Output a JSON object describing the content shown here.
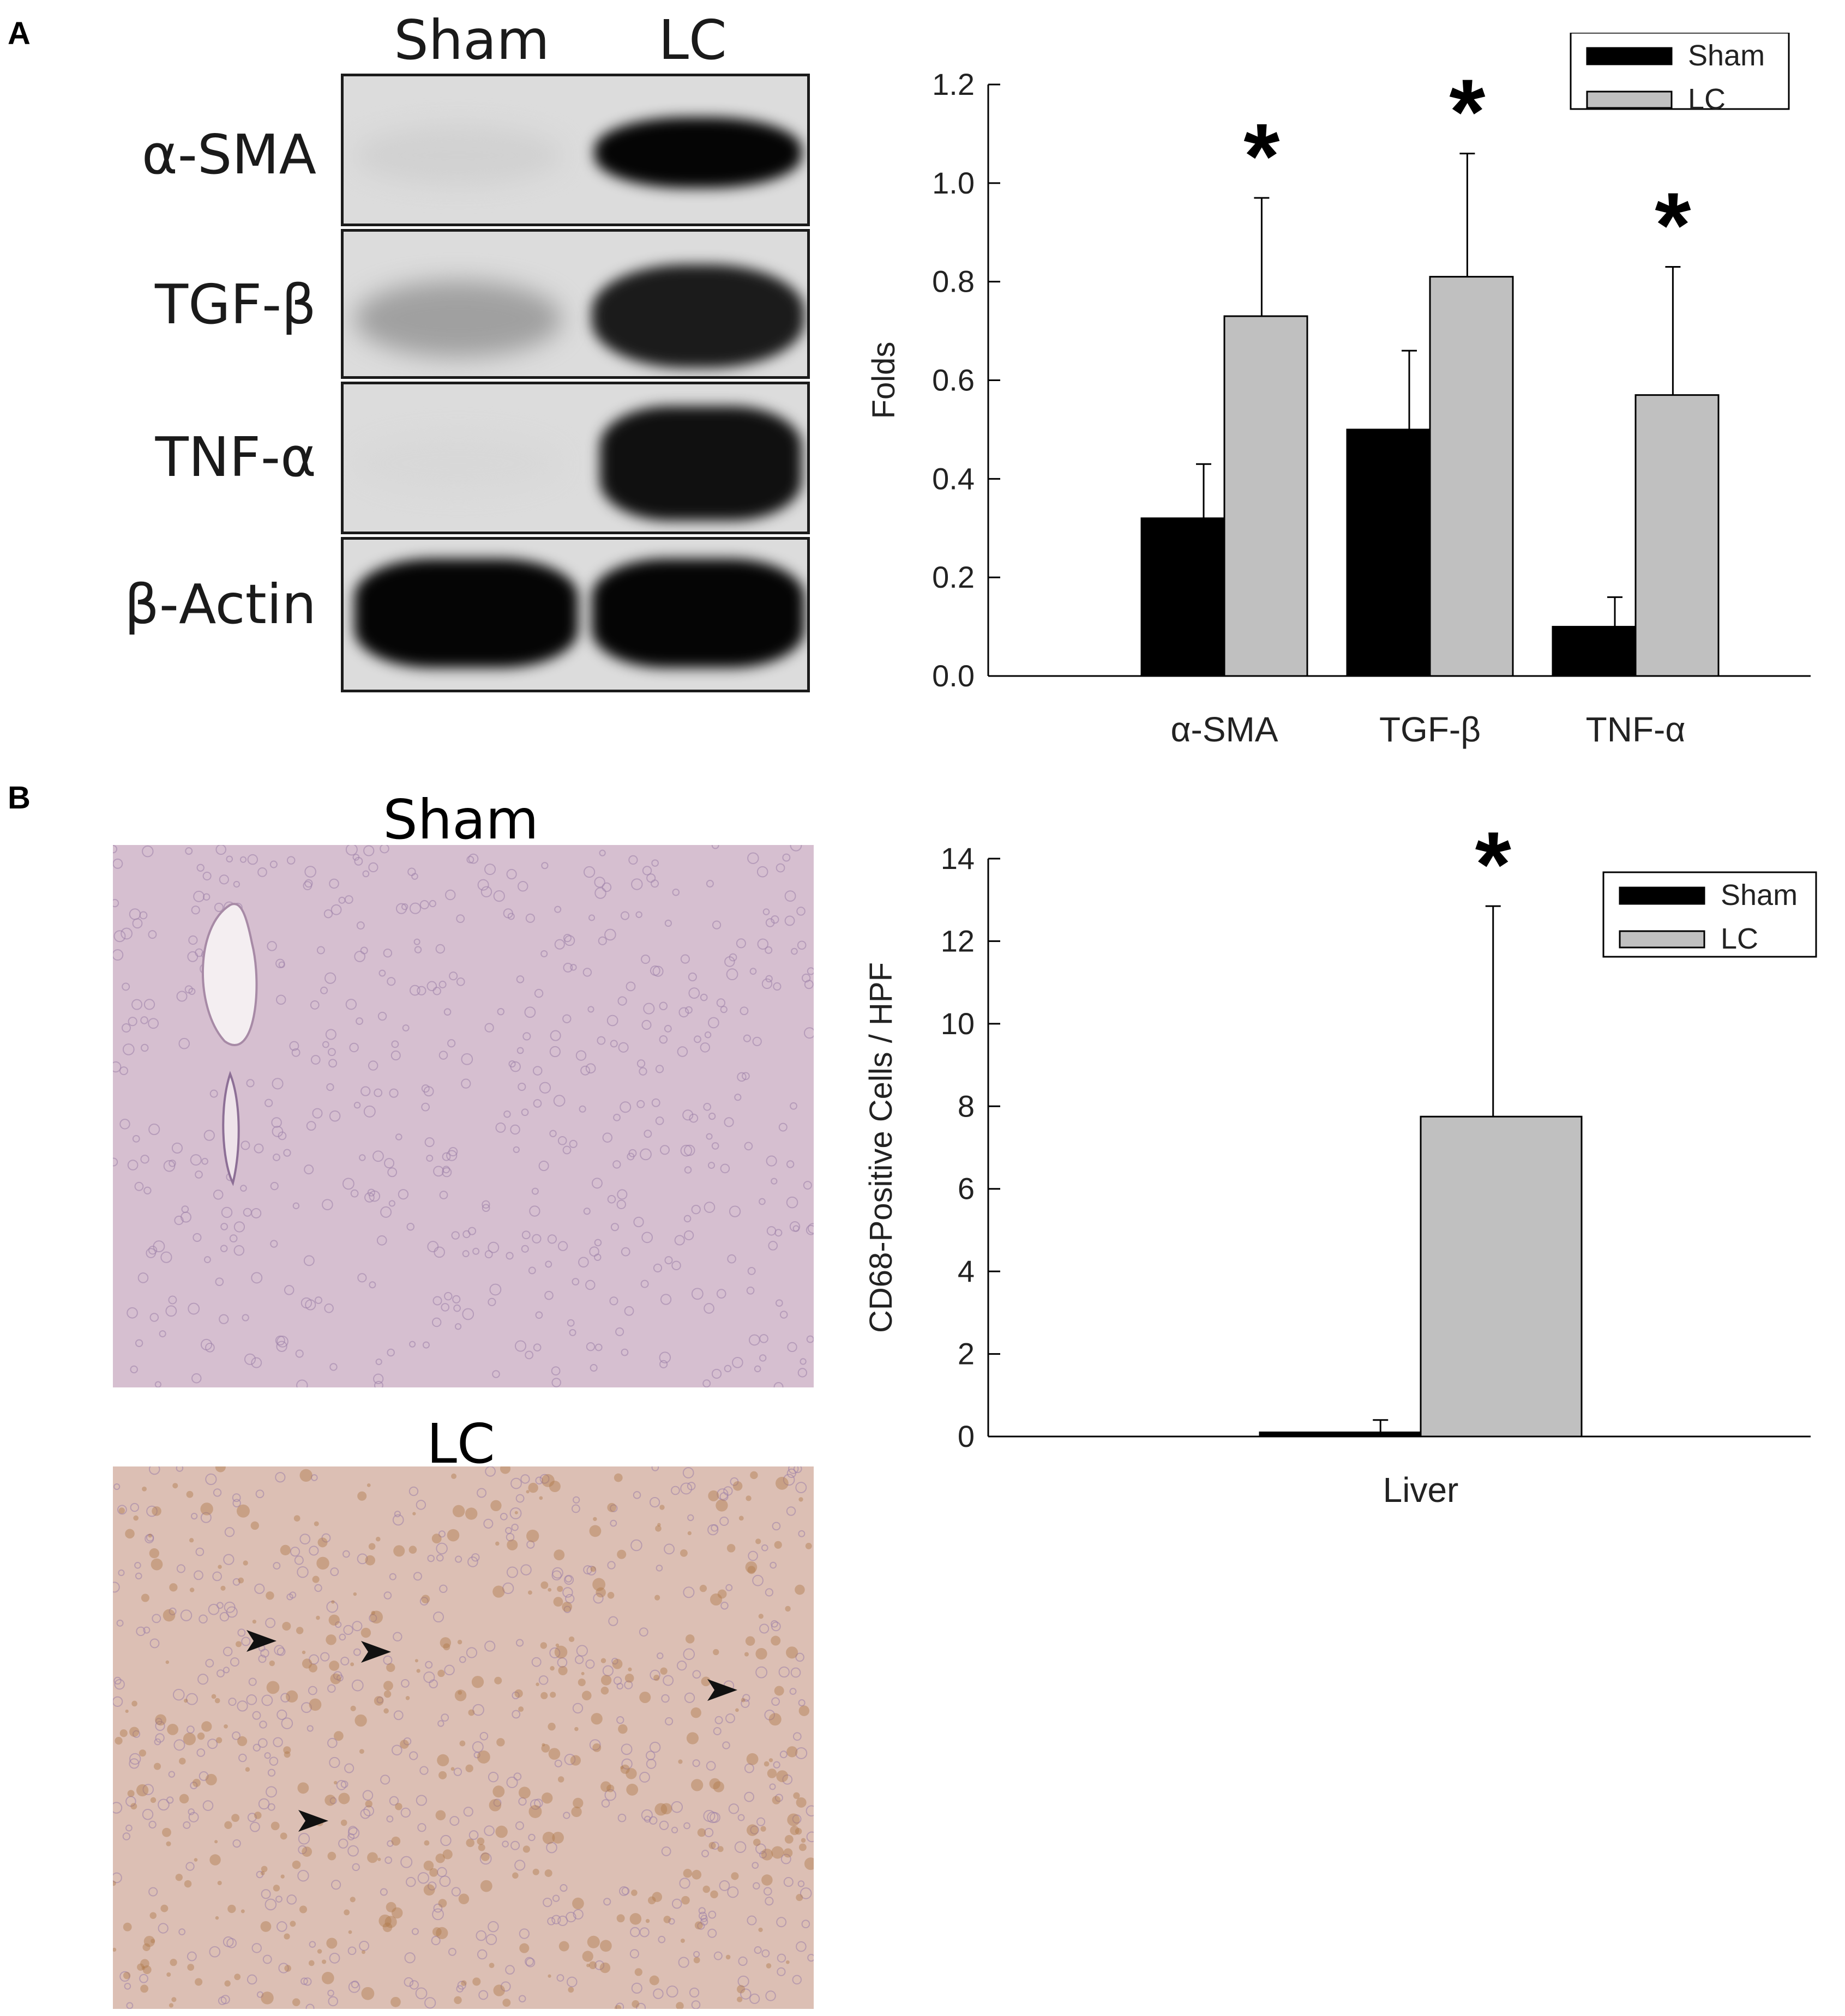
{
  "panel_a": {
    "letter": "A",
    "blot": {
      "lanes": [
        "Sham",
        "LC"
      ],
      "rows": [
        {
          "label": "α-SMA",
          "sham_intensity": 0.05,
          "lc_intensity": 1.0
        },
        {
          "label": "TGF-β",
          "sham_intensity": 0.28,
          "lc_intensity": 0.9
        },
        {
          "label": "TNF-α",
          "sham_intensity": 0.02,
          "lc_intensity": 0.95
        },
        {
          "label": "β-Actin",
          "sham_intensity": 1.0,
          "lc_intensity": 1.0
        }
      ]
    }
  },
  "panel_b": {
    "letter": "B",
    "sham_title": "Sham",
    "lc_title": "LC",
    "colors": {
      "sham_tissue": "#d6bfd0",
      "lc_tissue": "#dcbfb4",
      "lc_stain": "#b07a4c",
      "nuclei": "#9d7fa8"
    }
  },
  "chart_data": [
    {
      "type": "bar",
      "title": "",
      "xlabel": "",
      "ylabel": "Folds",
      "categories": [
        "α-SMA",
        "TGF-β",
        "TNF-α"
      ],
      "series": [
        {
          "name": "Sham",
          "color": "#000000",
          "values": [
            0.32,
            0.5,
            0.1
          ],
          "errors": [
            0.11,
            0.16,
            0.06
          ]
        },
        {
          "name": "LC",
          "color": "#c0c0c0",
          "values": [
            0.73,
            0.81,
            0.57
          ],
          "errors": [
            0.24,
            0.25,
            0.26
          ]
        }
      ],
      "significance": [
        "*",
        "*",
        "*"
      ],
      "ylim": [
        0,
        1.2
      ],
      "yticks": [
        "0.0",
        "0.2",
        "0.4",
        "0.6",
        "0.8",
        "1.0",
        "1.2"
      ],
      "legend_position": "top-right",
      "grid": false
    },
    {
      "type": "bar",
      "title": "",
      "xlabel": "",
      "ylabel": "CD68-Positive Cells / HPF",
      "categories": [
        "Liver"
      ],
      "series": [
        {
          "name": "Sham",
          "color": "#000000",
          "values": [
            0.1
          ],
          "errors": [
            0.3
          ]
        },
        {
          "name": "LC",
          "color": "#c0c0c0",
          "values": [
            7.75
          ],
          "errors": [
            5.1
          ]
        }
      ],
      "significance": [
        "*"
      ],
      "ylim": [
        0,
        14
      ],
      "yticks": [
        "0",
        "2",
        "4",
        "6",
        "8",
        "10",
        "12",
        "14"
      ],
      "legend_position": "top-right",
      "grid": false
    }
  ]
}
